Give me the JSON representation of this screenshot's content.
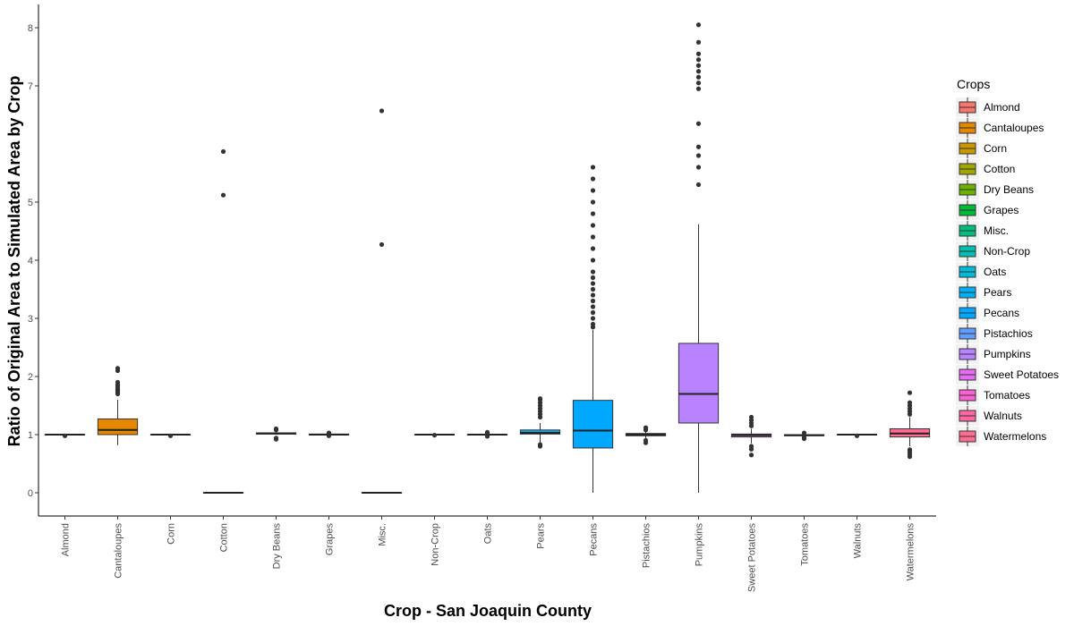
{
  "chart_data": {
    "type": "box",
    "title": "",
    "xlabel": "Crop - San Joaquin County",
    "ylabel": "Ratio of Original Area to Simulated Area by Crop",
    "ylim": [
      -0.4,
      8.4
    ],
    "yticks": [
      0,
      1,
      2,
      3,
      4,
      5,
      7,
      8
    ],
    "grid": false,
    "legend": {
      "title": "Crops",
      "position": "right"
    },
    "categories": [
      "Almond",
      "Cantaloupes",
      "Corn",
      "Cotton",
      "Dry Beans",
      "Grapes",
      "Misc.",
      "Non-Crop",
      "Oats",
      "Pears",
      "Pecans",
      "Pistachios",
      "Pumpkins",
      "Sweet Potatoes",
      "Tomatoes",
      "Walnuts",
      "Watermelons"
    ],
    "colors": [
      "#F8766D",
      "#E58700",
      "#C99800",
      "#A3A500",
      "#6BB100",
      "#00BA38",
      "#00BF7D",
      "#00C0AF",
      "#00BCD8",
      "#00B0F6",
      "#00A9FF",
      "#619CFF",
      "#B983FF",
      "#E76BF3",
      "#FD61D1",
      "#FF67A4",
      "#FF6C91"
    ],
    "boxes": [
      {
        "crop": "Almond",
        "min": 1.0,
        "q1": 1.0,
        "median": 1.0,
        "q3": 1.0,
        "max": 1.0,
        "outliers": [
          0.98
        ]
      },
      {
        "crop": "Cantaloupes",
        "min": 0.82,
        "q1": 1.0,
        "median": 1.08,
        "q3": 1.27,
        "max": 1.6,
        "outliers": [
          1.7,
          1.72,
          1.74,
          1.76,
          1.78,
          1.8,
          1.83,
          1.86,
          1.9,
          2.1,
          2.14
        ]
      },
      {
        "crop": "Corn",
        "min": 1.0,
        "q1": 1.0,
        "median": 1.0,
        "q3": 1.0,
        "max": 1.0,
        "outliers": [
          0.98
        ]
      },
      {
        "crop": "Cotton",
        "min": 0.0,
        "q1": 0.0,
        "median": 0.0,
        "q3": 0.0,
        "max": 0.0,
        "outliers": [
          5.12,
          5.87
        ]
      },
      {
        "crop": "Dry Beans",
        "min": 1.0,
        "q1": 1.01,
        "median": 1.02,
        "q3": 1.03,
        "max": 1.04,
        "outliers": [
          0.92,
          0.94,
          1.08,
          1.1
        ]
      },
      {
        "crop": "Grapes",
        "min": 1.0,
        "q1": 1.0,
        "median": 1.0,
        "q3": 1.01,
        "max": 1.01,
        "outliers": [
          0.98,
          1.03
        ]
      },
      {
        "crop": "Misc.",
        "min": 0.0,
        "q1": 0.0,
        "median": 0.0,
        "q3": 0.0,
        "max": 0.0,
        "outliers": [
          4.27,
          6.57
        ]
      },
      {
        "crop": "Non-Crop",
        "min": 1.0,
        "q1": 1.0,
        "median": 1.0,
        "q3": 1.0,
        "max": 1.0,
        "outliers": [
          0.99
        ]
      },
      {
        "crop": "Oats",
        "min": 1.0,
        "q1": 1.0,
        "median": 1.0,
        "q3": 1.0,
        "max": 1.0,
        "outliers": [
          0.97,
          1.02,
          1.04
        ]
      },
      {
        "crop": "Pears",
        "min": 0.86,
        "q1": 1.01,
        "median": 1.03,
        "q3": 1.08,
        "max": 1.2,
        "outliers": [
          0.8,
          0.83,
          1.3,
          1.35,
          1.4,
          1.45,
          1.5,
          1.55,
          1.6,
          1.62
        ]
      },
      {
        "crop": "Pecans",
        "min": 0.0,
        "q1": 0.77,
        "median": 1.07,
        "q3": 1.59,
        "max": 2.8,
        "outliers": [
          2.85,
          2.9,
          3.0,
          3.1,
          3.2,
          3.3,
          3.4,
          3.5,
          3.6,
          3.7,
          3.8,
          4.0,
          4.2,
          4.4,
          4.6,
          4.8,
          5.0,
          5.2,
          5.4,
          5.6
        ]
      },
      {
        "crop": "Pistachios",
        "min": 0.92,
        "q1": 0.98,
        "median": 1.0,
        "q3": 1.02,
        "max": 1.05,
        "outliers": [
          0.86,
          0.9,
          1.08,
          1.12
        ]
      },
      {
        "crop": "Pumpkins",
        "min": 0.0,
        "q1": 1.2,
        "median": 1.7,
        "q3": 2.57,
        "max": 4.62,
        "outliers": [
          5.3,
          5.6,
          5.8,
          5.95,
          6.35,
          6.95,
          7.05,
          7.15,
          7.25,
          7.35,
          7.45,
          7.55,
          7.75,
          8.05
        ]
      },
      {
        "crop": "Sweet Potatoes",
        "min": 0.85,
        "q1": 0.96,
        "median": 0.99,
        "q3": 1.01,
        "max": 1.1,
        "outliers": [
          0.65,
          0.75,
          0.8,
          1.15,
          1.2,
          1.25,
          1.3
        ]
      },
      {
        "crop": "Tomatoes",
        "min": 0.97,
        "q1": 0.98,
        "median": 0.99,
        "q3": 1.0,
        "max": 1.01,
        "outliers": [
          0.93,
          0.95,
          1.03
        ]
      },
      {
        "crop": "Walnuts",
        "min": 1.0,
        "q1": 1.0,
        "median": 1.0,
        "q3": 1.0,
        "max": 1.0,
        "outliers": [
          0.98
        ]
      },
      {
        "crop": "Watermelons",
        "min": 0.8,
        "q1": 0.96,
        "median": 1.02,
        "q3": 1.1,
        "max": 1.3,
        "outliers": [
          0.62,
          0.66,
          0.7,
          0.74,
          1.35,
          1.4,
          1.45,
          1.5,
          1.55,
          1.72
        ]
      }
    ]
  }
}
